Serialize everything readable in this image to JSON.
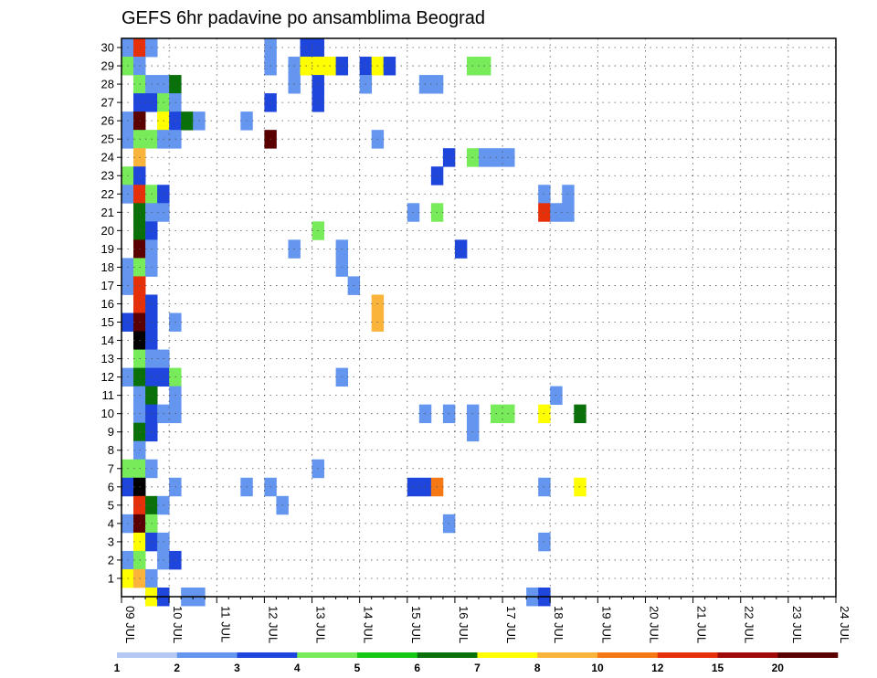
{
  "chart_data": {
    "type": "heatmap",
    "title": "GEFS 6hr padavine po ansamblima Beograd",
    "xlabel": "",
    "ylabel": "",
    "x_ticks": [
      "09 JUL",
      "10 JUL",
      "11 JUL",
      "12 JUL",
      "13 JUL",
      "14 JUL",
      "15 JUL",
      "16 JUL",
      "17 JUL",
      "18 JUL",
      "19 JUL",
      "20 JUL",
      "21 JUL",
      "22 JUL",
      "23 JUL",
      "24 JUL"
    ],
    "x_range_steps": [
      0,
      60
    ],
    "y_ticks": [
      1,
      2,
      3,
      4,
      5,
      6,
      7,
      8,
      9,
      10,
      11,
      12,
      13,
      14,
      15,
      16,
      17,
      18,
      19,
      20,
      21,
      22,
      23,
      24,
      25,
      26,
      27,
      28,
      29,
      30
    ],
    "y_range": [
      0,
      30
    ],
    "grid": true,
    "legend_placement": "bottom",
    "legend_levels": [
      "1",
      "2",
      "3",
      "4",
      "5",
      "6",
      "7",
      "8",
      "10",
      "12",
      "15",
      "20"
    ],
    "legend_colors": [
      "#b4c8f5",
      "#6496f0",
      "#1e46dc",
      "#78eb5a",
      "#14c814",
      "#0a700a",
      "#ffff00",
      "#fab43c",
      "#f57814",
      "#e6300a",
      "#a00a0a",
      "#5a0000"
    ],
    "cells": [
      [
        0,
        30,
        1
      ],
      [
        1,
        30,
        9
      ],
      [
        2,
        30,
        1
      ],
      [
        12,
        30,
        1
      ],
      [
        15,
        30,
        2
      ],
      [
        16,
        30,
        2
      ],
      [
        0,
        29,
        3
      ],
      [
        1,
        29,
        1
      ],
      [
        12,
        29,
        1
      ],
      [
        14,
        29,
        1
      ],
      [
        15,
        29,
        6
      ],
      [
        16,
        29,
        6
      ],
      [
        17,
        29,
        6
      ],
      [
        18,
        29,
        2
      ],
      [
        20,
        29,
        2
      ],
      [
        21,
        29,
        6
      ],
      [
        22,
        29,
        2
      ],
      [
        29,
        29,
        3
      ],
      [
        30,
        29,
        3
      ],
      [
        1,
        28,
        3
      ],
      [
        2,
        28,
        1
      ],
      [
        3,
        28,
        1
      ],
      [
        4,
        28,
        5
      ],
      [
        14,
        28,
        1
      ],
      [
        16,
        28,
        2
      ],
      [
        20,
        28,
        1
      ],
      [
        25,
        28,
        1
      ],
      [
        26,
        28,
        1
      ],
      [
        1,
        27,
        2
      ],
      [
        2,
        27,
        2
      ],
      [
        3,
        27,
        3
      ],
      [
        4,
        27,
        1
      ],
      [
        12,
        27,
        2
      ],
      [
        16,
        27,
        2
      ],
      [
        0,
        26,
        1
      ],
      [
        1,
        26,
        11
      ],
      [
        3,
        26,
        6
      ],
      [
        4,
        26,
        2
      ],
      [
        5,
        26,
        5
      ],
      [
        6,
        26,
        1
      ],
      [
        10,
        26,
        1
      ],
      [
        0,
        25,
        1
      ],
      [
        1,
        25,
        3
      ],
      [
        2,
        25,
        3
      ],
      [
        3,
        25,
        1
      ],
      [
        4,
        25,
        1
      ],
      [
        12,
        25,
        11
      ],
      [
        21,
        25,
        1
      ],
      [
        1,
        24,
        7
      ],
      [
        27,
        24,
        2
      ],
      [
        29,
        24,
        3
      ],
      [
        30,
        24,
        1
      ],
      [
        31,
        24,
        1
      ],
      [
        32,
        24,
        1
      ],
      [
        0,
        23,
        3
      ],
      [
        1,
        23,
        2
      ],
      [
        26,
        23,
        2
      ],
      [
        0,
        22,
        1
      ],
      [
        1,
        22,
        9
      ],
      [
        2,
        22,
        3
      ],
      [
        3,
        22,
        2
      ],
      [
        35,
        22,
        1
      ],
      [
        37,
        22,
        1
      ],
      [
        1,
        21,
        5
      ],
      [
        2,
        21,
        1
      ],
      [
        3,
        21,
        1
      ],
      [
        24,
        21,
        1
      ],
      [
        26,
        21,
        3
      ],
      [
        35,
        21,
        9
      ],
      [
        36,
        21,
        1
      ],
      [
        37,
        21,
        1
      ],
      [
        1,
        20,
        5
      ],
      [
        2,
        20,
        2
      ],
      [
        16,
        20,
        3
      ],
      [
        1,
        19,
        11
      ],
      [
        2,
        19,
        1
      ],
      [
        14,
        19,
        1
      ],
      [
        18,
        19,
        1
      ],
      [
        28,
        19,
        2
      ],
      [
        0,
        18,
        1
      ],
      [
        1,
        18,
        3
      ],
      [
        2,
        18,
        1
      ],
      [
        18,
        18,
        1
      ],
      [
        0,
        17,
        1
      ],
      [
        1,
        17,
        9
      ],
      [
        19,
        17,
        1
      ],
      [
        1,
        16,
        9
      ],
      [
        2,
        16,
        2
      ],
      [
        21,
        16,
        7
      ],
      [
        0,
        15,
        2
      ],
      [
        1,
        15,
        11
      ],
      [
        2,
        15,
        2
      ],
      [
        21,
        15,
        7
      ],
      [
        4,
        15,
        1
      ],
      [
        1,
        14,
        12
      ],
      [
        2,
        14,
        2
      ],
      [
        1,
        13,
        3
      ],
      [
        2,
        13,
        1
      ],
      [
        3,
        13,
        1
      ],
      [
        0,
        12,
        1
      ],
      [
        1,
        12,
        5
      ],
      [
        2,
        12,
        2
      ],
      [
        3,
        12,
        2
      ],
      [
        4,
        12,
        3
      ],
      [
        18,
        12,
        1
      ],
      [
        1,
        11,
        1
      ],
      [
        2,
        11,
        5
      ],
      [
        4,
        11,
        1
      ],
      [
        36,
        11,
        1
      ],
      [
        1,
        10,
        1
      ],
      [
        2,
        10,
        2
      ],
      [
        3,
        10,
        1
      ],
      [
        4,
        10,
        1
      ],
      [
        25,
        10,
        1
      ],
      [
        27,
        10,
        1
      ],
      [
        29,
        10,
        1
      ],
      [
        31,
        10,
        3
      ],
      [
        32,
        10,
        3
      ],
      [
        35,
        10,
        6
      ],
      [
        38,
        10,
        5
      ],
      [
        1,
        9,
        5
      ],
      [
        2,
        9,
        2
      ],
      [
        29,
        9,
        1
      ],
      [
        1,
        8,
        1
      ],
      [
        0,
        7,
        3
      ],
      [
        1,
        7,
        3
      ],
      [
        2,
        7,
        1
      ],
      [
        16,
        7,
        1
      ],
      [
        0,
        6,
        2
      ],
      [
        1,
        6,
        13
      ],
      [
        4,
        6,
        1
      ],
      [
        10,
        6,
        1
      ],
      [
        12,
        6,
        1
      ],
      [
        24,
        6,
        2
      ],
      [
        25,
        6,
        2
      ],
      [
        26,
        6,
        8
      ],
      [
        35,
        6,
        1
      ],
      [
        38,
        6,
        6
      ],
      [
        1,
        5,
        9
      ],
      [
        2,
        5,
        5
      ],
      [
        3,
        5,
        1
      ],
      [
        13,
        5,
        1
      ],
      [
        0,
        4,
        1
      ],
      [
        1,
        4,
        11
      ],
      [
        2,
        4,
        3
      ],
      [
        27,
        4,
        1
      ],
      [
        1,
        3,
        6
      ],
      [
        2,
        3,
        2
      ],
      [
        3,
        3,
        1
      ],
      [
        35,
        3,
        1
      ],
      [
        0,
        2,
        1
      ],
      [
        1,
        2,
        3
      ],
      [
        3,
        2,
        1
      ],
      [
        4,
        2,
        2
      ],
      [
        0,
        1,
        6
      ],
      [
        1,
        1,
        7
      ],
      [
        2,
        1,
        1
      ],
      [
        2,
        0,
        6
      ],
      [
        3,
        0,
        2
      ],
      [
        5,
        0,
        1
      ],
      [
        6,
        0,
        1
      ],
      [
        34,
        0,
        1
      ],
      [
        35,
        0,
        2
      ]
    ]
  }
}
